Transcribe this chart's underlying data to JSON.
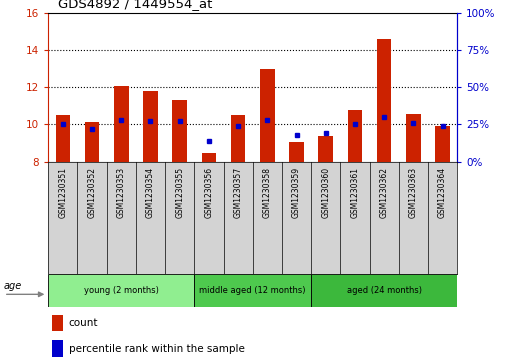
{
  "title": "GDS4892 / 1449554_at",
  "samples": [
    "GSM1230351",
    "GSM1230352",
    "GSM1230353",
    "GSM1230354",
    "GSM1230355",
    "GSM1230356",
    "GSM1230357",
    "GSM1230358",
    "GSM1230359",
    "GSM1230360",
    "GSM1230361",
    "GSM1230362",
    "GSM1230363",
    "GSM1230364"
  ],
  "count_values": [
    10.5,
    10.1,
    12.05,
    11.8,
    11.3,
    8.45,
    10.5,
    13.0,
    9.05,
    9.35,
    10.75,
    14.6,
    10.55,
    9.9
  ],
  "percentile_values": [
    25,
    22,
    28,
    27,
    27,
    14,
    24,
    28,
    18,
    19,
    25,
    30,
    26,
    24
  ],
  "ylim_left": [
    8,
    16
  ],
  "ylim_right": [
    0,
    100
  ],
  "yticks_left": [
    8,
    10,
    12,
    14,
    16
  ],
  "yticks_right": [
    0,
    25,
    50,
    75,
    100
  ],
  "groups": [
    {
      "label": "young (2 months)",
      "start": 0,
      "end": 5,
      "color": "#90EE90"
    },
    {
      "label": "middle aged (12 months)",
      "start": 5,
      "end": 9,
      "color": "#4EC94E"
    },
    {
      "label": "aged (24 months)",
      "start": 9,
      "end": 14,
      "color": "#3CB83C"
    }
  ],
  "bar_color": "#CC2200",
  "marker_color": "#0000CC",
  "bar_width": 0.5,
  "gridline_color": "#000000",
  "left_axis_color": "#CC2200",
  "right_axis_color": "#0000CC",
  "age_label": "age",
  "legend_count_label": "count",
  "legend_percentile_label": "percentile rank within the sample",
  "base_value": 8,
  "label_bg_color": "#d3d3d3"
}
